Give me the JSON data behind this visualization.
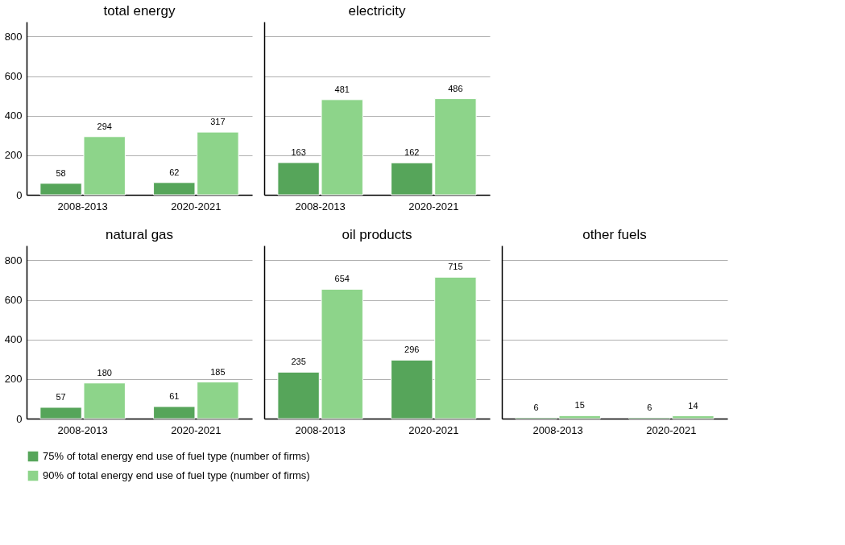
{
  "chart_data": [
    {
      "type": "bar",
      "title": "total energy",
      "categories": [
        "2008-2013",
        "2020-2021"
      ],
      "ylim": [
        0,
        875
      ],
      "yticks": [
        0,
        200,
        400,
        600,
        800
      ],
      "grid": "y",
      "data_labels": true,
      "legend": "bottom",
      "series": [
        {
          "name": "75% of total energy end use of fuel type (number of firms)",
          "color": "#56a55a",
          "values": [
            58,
            62
          ]
        },
        {
          "name": "90% of total energy end use of fuel type (number of firms)",
          "color": "#8dd48a",
          "values": [
            294,
            317
          ]
        }
      ]
    },
    {
      "type": "bar",
      "title": "electricity",
      "categories": [
        "2008-2013",
        "2020-2021"
      ],
      "ylim": [
        0,
        875
      ],
      "yticks": [
        0,
        200,
        400,
        600,
        800
      ],
      "grid": "y",
      "data_labels": true,
      "legend": "bottom",
      "tick_labels": "x",
      "series": [
        {
          "name": "75% of total energy end use of fuel type (number of firms)",
          "color": "#56a55a",
          "values": [
            163,
            162
          ]
        },
        {
          "name": "90% of total energy end use of fuel type (number of firms)",
          "color": "#8dd48a",
          "values": [
            481,
            486
          ]
        }
      ]
    },
    {
      "type": "bar",
      "title": "natural gas",
      "categories": [
        "2008-2013",
        "2020-2021"
      ],
      "ylim": [
        0,
        875
      ],
      "yticks": [
        0,
        200,
        400,
        600,
        800
      ],
      "grid": "y",
      "data_labels": true,
      "legend": "bottom",
      "series": [
        {
          "name": "75% of total energy end use of fuel type (number of firms)",
          "color": "#56a55a",
          "values": [
            57,
            61
          ]
        },
        {
          "name": "90% of total energy end use of fuel type (number of firms)",
          "color": "#8dd48a",
          "values": [
            180,
            185
          ]
        }
      ]
    },
    {
      "type": "bar",
      "title": "oil products",
      "categories": [
        "2008-2013",
        "2020-2021"
      ],
      "ylim": [
        0,
        875
      ],
      "yticks": [
        0,
        200,
        400,
        600,
        800
      ],
      "grid": "y",
      "data_labels": true,
      "legend": "bottom",
      "tick_labels": "x",
      "series": [
        {
          "name": "75% of total energy end use of fuel type (number of firms)",
          "color": "#56a55a",
          "values": [
            235,
            296
          ]
        },
        {
          "name": "90% of total energy end use of fuel type (number of firms)",
          "color": "#8dd48a",
          "values": [
            654,
            715
          ]
        }
      ]
    },
    {
      "type": "bar",
      "title": "other fuels",
      "categories": [
        "2008-2013",
        "2020-2021"
      ],
      "ylim": [
        0,
        875
      ],
      "yticks": [
        0,
        200,
        400,
        600,
        800
      ],
      "grid": "y",
      "data_labels": true,
      "legend": "bottom",
      "tick_labels": "x",
      "series": [
        {
          "name": "75% of total energy end use of fuel type (number of firms)",
          "color": "#56a55a",
          "values": [
            6,
            6
          ]
        },
        {
          "name": "90% of total energy end use of fuel type (number of firms)",
          "color": "#8dd48a",
          "values": [
            15,
            14
          ]
        }
      ]
    }
  ]
}
